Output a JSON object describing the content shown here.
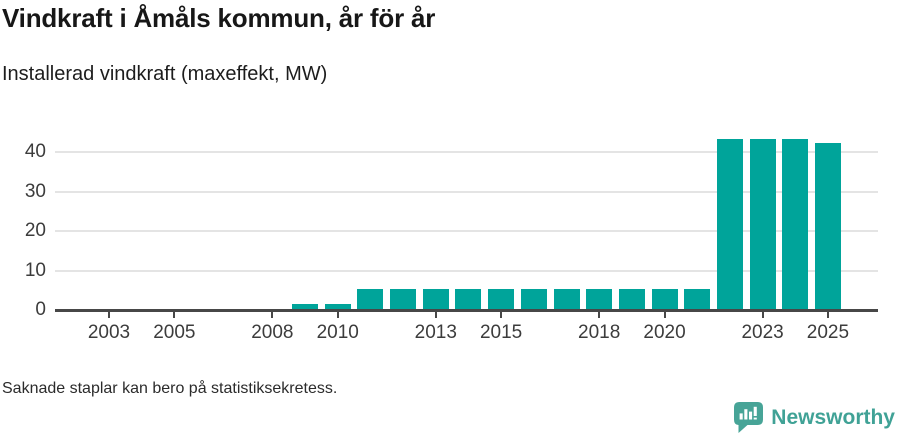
{
  "header": {
    "title": "Vindkraft i Åmåls kommun, år för år",
    "subtitle": "Installerad vindkraft (maxeffekt, MW)"
  },
  "chart_data": {
    "type": "bar",
    "title": "Vindkraft i Åmåls kommun, år för år",
    "subtitle": "Installerad vindkraft (maxeffekt, MW)",
    "unit": "MW",
    "categories": [
      "2002",
      "2003",
      "2004",
      "2005",
      "2006",
      "2007",
      "2008",
      "2009",
      "2010",
      "2011",
      "2012",
      "2013",
      "2014",
      "2015",
      "2016",
      "2017",
      "2018",
      "2019",
      "2020",
      "2021",
      "2022",
      "2023",
      "2024",
      "2025"
    ],
    "values": [
      0,
      0,
      0,
      0,
      0,
      0,
      0,
      1.2,
      1.2,
      5,
      5,
      5,
      5,
      5,
      5,
      5,
      5,
      5,
      5,
      5,
      43,
      43,
      43,
      42
    ],
    "ylim": [
      0,
      45
    ],
    "yticks": [
      0,
      10,
      20,
      30,
      40
    ],
    "xtick_labels": [
      "2003",
      "2005",
      "2008",
      "2010",
      "2013",
      "2015",
      "2018",
      "2020",
      "2023",
      "2025"
    ],
    "grid": "horizontal",
    "legend": false,
    "bar_color": "#00a49a",
    "axis_color": "#474747",
    "grid_color": "#e4e4e4"
  },
  "footer": {
    "note": "Saknade staplar kan bero på statistiksekretess."
  },
  "branding": {
    "name": "Newsworthy",
    "text_color": "#40a296",
    "icon_color": "#47a497"
  }
}
